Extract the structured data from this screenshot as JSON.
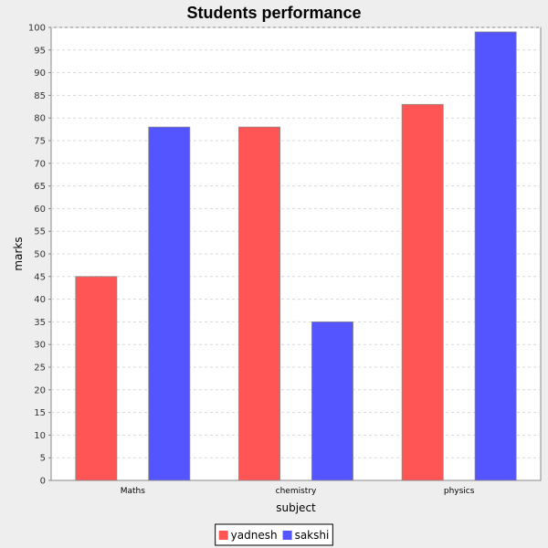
{
  "chart_data": {
    "type": "bar",
    "title": "Students performance",
    "xlabel": "subject",
    "ylabel": "marks",
    "categories": [
      "Maths",
      "chemistry",
      "physics"
    ],
    "series": [
      {
        "name": "yadnesh",
        "color": "#ff5555",
        "values": [
          45,
          78,
          83
        ]
      },
      {
        "name": "sakshi",
        "color": "#5555ff",
        "values": [
          78,
          35,
          99
        ]
      }
    ],
    "ylim": [
      0,
      100
    ],
    "yticks": [
      0,
      5,
      10,
      15,
      20,
      25,
      30,
      35,
      40,
      45,
      50,
      55,
      60,
      65,
      70,
      75,
      80,
      85,
      90,
      95,
      100
    ],
    "grid": true,
    "legend": "bottom-center"
  }
}
